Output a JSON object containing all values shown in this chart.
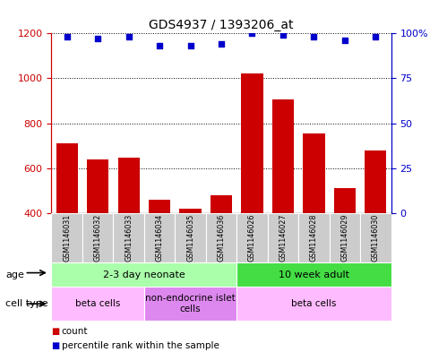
{
  "title": "GDS4937 / 1393206_at",
  "samples": [
    "GSM1146031",
    "GSM1146032",
    "GSM1146033",
    "GSM1146034",
    "GSM1146035",
    "GSM1146036",
    "GSM1146026",
    "GSM1146027",
    "GSM1146028",
    "GSM1146029",
    "GSM1146030"
  ],
  "counts": [
    710,
    640,
    648,
    460,
    418,
    478,
    1020,
    905,
    755,
    510,
    678
  ],
  "percentiles": [
    98,
    97,
    98,
    93,
    93,
    94,
    100,
    99,
    98,
    96,
    98
  ],
  "bar_color": "#cc0000",
  "dot_color": "#0000cc",
  "left_ylim": [
    400,
    1200
  ],
  "right_ylim": [
    0,
    100
  ],
  "left_yticks": [
    400,
    600,
    800,
    1000,
    1200
  ],
  "right_yticks": [
    0,
    25,
    50,
    75,
    100
  ],
  "right_yticklabels": [
    "0",
    "25",
    "50",
    "75",
    "100%"
  ],
  "age_groups": [
    {
      "label": "2-3 day neonate",
      "start": 0,
      "end": 6,
      "color": "#aaffaa"
    },
    {
      "label": "10 week adult",
      "start": 6,
      "end": 11,
      "color": "#44dd44"
    }
  ],
  "cell_type_groups": [
    {
      "label": "beta cells",
      "start": 0,
      "end": 3,
      "color": "#ffbbff"
    },
    {
      "label": "non-endocrine islet\ncells",
      "start": 3,
      "end": 6,
      "color": "#dd88ee"
    },
    {
      "label": "beta cells",
      "start": 6,
      "end": 11,
      "color": "#ffbbff"
    }
  ],
  "legend_items": [
    {
      "color": "#cc0000",
      "label": "count"
    },
    {
      "color": "#0000cc",
      "label": "percentile rank within the sample"
    }
  ],
  "axis_color_left": "#cc0000",
  "axis_color_right": "#0000cc"
}
